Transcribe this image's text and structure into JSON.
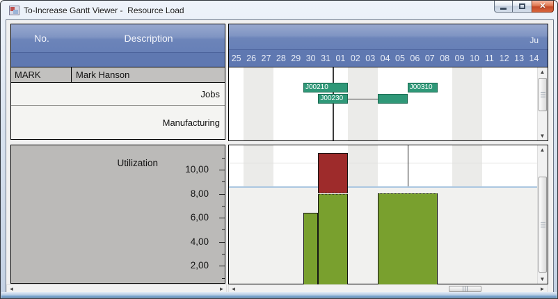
{
  "window": {
    "title": "To-Increase Gantt Viewer -  Resource Load"
  },
  "resource_table": {
    "columns": [
      "No.",
      "Description"
    ],
    "resource": {
      "no": "MARK",
      "description": "Mark Hanson"
    },
    "rows": [
      {
        "label": "Jobs"
      },
      {
        "label": "Manufacturing"
      }
    ]
  },
  "timeline": {
    "month_label": "Ju",
    "days": [
      "25",
      "26",
      "27",
      "28",
      "29",
      "30",
      "31",
      "01",
      "02",
      "03",
      "04",
      "05",
      "06",
      "07",
      "08",
      "09",
      "10",
      "11",
      "12",
      "13",
      "14"
    ],
    "weekend_indices": [
      1,
      8,
      15
    ],
    "today_index": 7
  },
  "gantt": {
    "tasks": [
      {
        "label": "J00210",
        "row": 0,
        "start_index": 5,
        "num_days": 3
      },
      {
        "label": "J00230",
        "row": 1,
        "start_index": 6,
        "num_days": 2
      },
      {
        "label": "",
        "row": 1,
        "start_index": 10,
        "num_days": 2
      },
      {
        "label": "J00310",
        "row": 0,
        "start_index": 12,
        "num_days": 2
      }
    ],
    "link": {
      "row": 1,
      "from_index": 8,
      "to_index": 10
    }
  },
  "utilization_axis": {
    "label": "Utilization",
    "ticks": [
      "10,00",
      "8,00",
      "6,00",
      "4,00",
      "2,00"
    ],
    "tick_values": [
      10,
      8,
      6,
      4,
      2
    ]
  },
  "chart_data": {
    "type": "bar",
    "title": "Utilization",
    "categories": [
      "25",
      "26",
      "27",
      "28",
      "29",
      "30",
      "31",
      "01",
      "02",
      "03",
      "04",
      "05",
      "06",
      "07",
      "08",
      "09",
      "10",
      "11",
      "12",
      "13",
      "14"
    ],
    "values": [
      0,
      0,
      0,
      0,
      0,
      6.4,
      11.4,
      11.4,
      0,
      0,
      8,
      8,
      8,
      8,
      0,
      0,
      0,
      0,
      0,
      0,
      0
    ],
    "bars": [
      {
        "start_index": 5,
        "num_days": 1,
        "value": 6.4
      },
      {
        "start_index": 6,
        "num_days": 2,
        "value": 11.4,
        "clipped_top": true
      },
      {
        "start_index": 10,
        "num_days": 4,
        "value": 8
      }
    ],
    "capacity_value": 8,
    "ylim": [
      0,
      11.5
    ],
    "ylabel_ticks": [
      "10,00",
      "8,00",
      "6,00",
      "4,00",
      "2,00"
    ],
    "colors": {
      "normal_load": "#79a02e",
      "overload": "#9e2b2b",
      "capacity_line": "#abc7e1",
      "task_bar": "#2f9878",
      "weekend_band": "#ebebe9",
      "header_blue": "#5f78b1"
    }
  }
}
